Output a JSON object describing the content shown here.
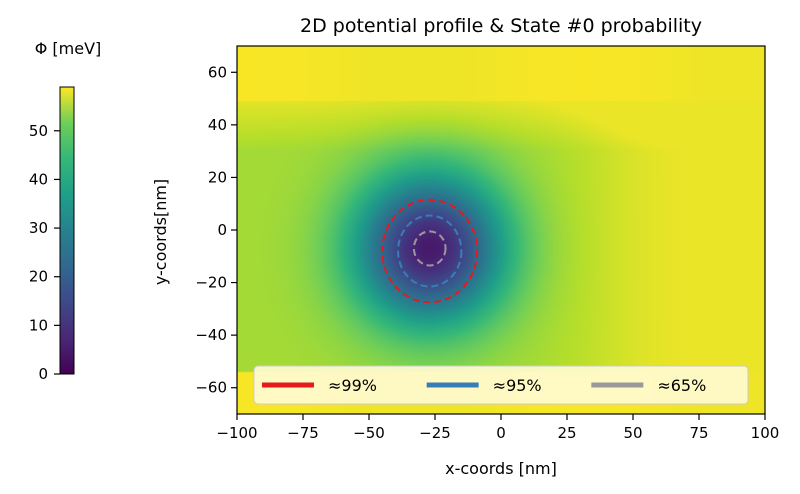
{
  "chart_data": {
    "type": "heatmap",
    "title": "2D potential profile & State #0 probability",
    "xlabel": "x-coords [nm]",
    "ylabel": "y-coords[nm]",
    "xlim": [
      -100,
      100
    ],
    "ylim": [
      -70,
      70
    ],
    "xticks": [
      -100,
      -75,
      -50,
      -25,
      0,
      25,
      50,
      75,
      100
    ],
    "yticks": [
      -60,
      -40,
      -20,
      0,
      20,
      40,
      60
    ],
    "xtick_labels": [
      "−100",
      "−75",
      "−50",
      "−25",
      "0",
      "25",
      "50",
      "75",
      "100"
    ],
    "ytick_labels": [
      "−60",
      "−40",
      "−20",
      "0",
      "20",
      "40",
      "60"
    ],
    "colormap": "viridis",
    "colorbar": {
      "label": "Φ [meV]",
      "range": [
        0,
        59
      ],
      "ticks": [
        0,
        10,
        20,
        30,
        40,
        50
      ],
      "tick_labels": [
        "0",
        "10",
        "20",
        "30",
        "40",
        "50"
      ]
    },
    "potential": {
      "well_center": [
        -27,
        -7
      ],
      "minimum_meV": 0,
      "maximum_meV": 59,
      "barrier_top_y": 49,
      "barrier_bottom_y": -54
    },
    "probability_contours": [
      {
        "name": "≈99%",
        "color": "#e41a1c",
        "center": [
          -27,
          -8
        ],
        "rx": 18,
        "ry": 19.5
      },
      {
        "name": "≈95%",
        "color": "#377eb8",
        "center": [
          -27,
          -8
        ],
        "rx": 12,
        "ry": 13.5
      },
      {
        "name": "≈65%",
        "color": "#999999",
        "center": [
          -27,
          -7
        ],
        "rx": 6,
        "ry": 6.5
      }
    ],
    "legend": {
      "placement": "lower-center",
      "columns": 3,
      "entries": [
        "≈99%",
        "≈95%",
        "≈65%"
      ]
    }
  }
}
